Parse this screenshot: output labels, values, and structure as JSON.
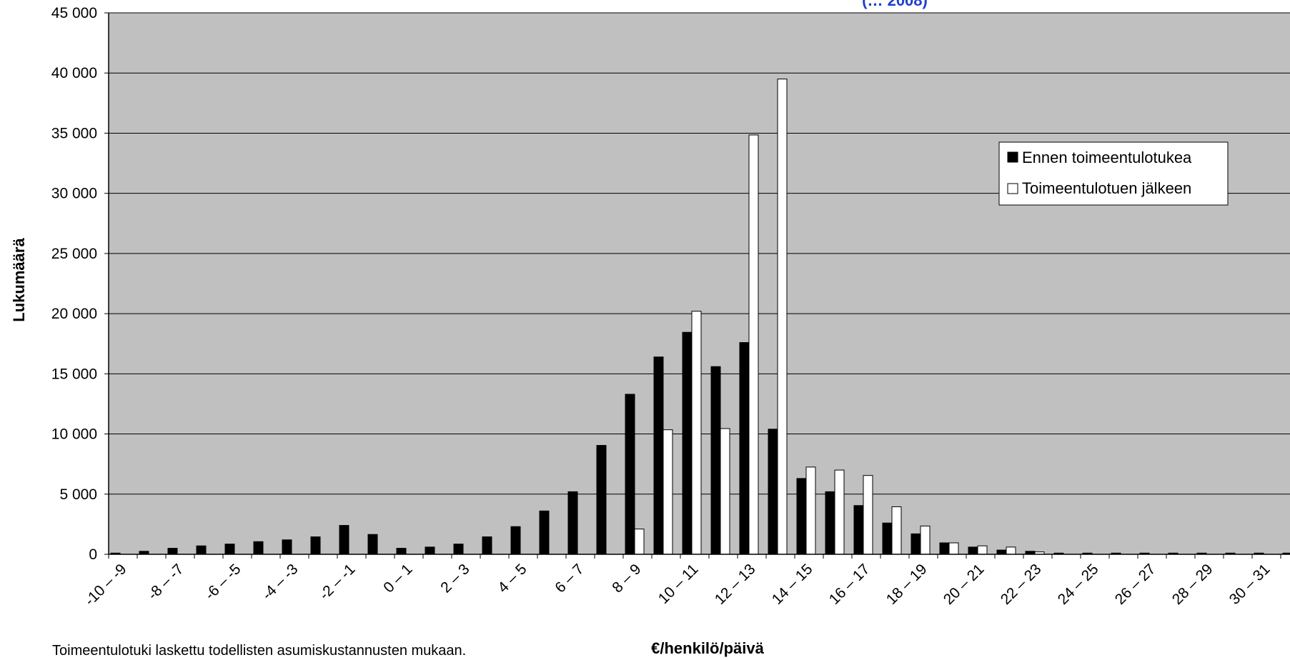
{
  "chart_data": {
    "type": "bar",
    "title": "",
    "title_fragment": "(… 2008)",
    "xlabel": "€/henkilö/päivä",
    "ylabel": "Lukumäärä",
    "ylim": [
      0,
      45000
    ],
    "yticks": [
      0,
      5000,
      10000,
      15000,
      20000,
      25000,
      30000,
      35000,
      40000,
      45000
    ],
    "ytick_labels": [
      "0",
      "5 000",
      "10 000",
      "15 000",
      "20 000",
      "25 000",
      "30 000",
      "35 000",
      "40 000",
      "45 000"
    ],
    "grid": true,
    "legend_position": "top-right",
    "categories": [
      "-10 – -9",
      "-9 – -8",
      "-8 – -7",
      "-7 – -6",
      "-6 – -5",
      "-5 – -4",
      "-4 – -3",
      "-3 – -2",
      "-2 – -1",
      "-1 – 0",
      "0 – 1",
      "1 – 2",
      "2 – 3",
      "3 – 4",
      "4 – 5",
      "5 – 6",
      "6 – 7",
      "7 – 8",
      "8 – 9",
      "9 – 10",
      "10 – 11",
      "11 – 12",
      "12 – 13",
      "13 – 14",
      "14 – 15",
      "15 – 16",
      "16 – 17",
      "17 – 18",
      "18 – 19",
      "19 – 20",
      "20 – 21",
      "21 – 22",
      "22 – 23",
      "23 – 24",
      "24 – 25",
      "25 – 26",
      "26 – 27",
      "27 – 28",
      "28 – 29",
      "29 – 30",
      "30 – 31",
      "31 – 32"
    ],
    "tick_labels_shown": [
      "-10 – -9",
      "-8 – -7",
      "-6 – -5",
      "-4 – -3",
      "-2 – -1",
      "0 – 1",
      "2 – 3",
      "4 – 5",
      "6 – 7",
      "8 – 9",
      "10 – 11",
      "12 – 13",
      "14 – 15",
      "16 – 17",
      "18 – 19",
      "20 – 21",
      "22 – 23",
      "24 – 25",
      "26 – 27",
      "28 – 29",
      "30 – 31"
    ],
    "series": [
      {
        "name": "Ennen toimeentulotukea",
        "color": "#000000",
        "values": [
          100,
          250,
          500,
          700,
          850,
          1050,
          1200,
          1450,
          2400,
          1650,
          500,
          600,
          850,
          1450,
          2300,
          3600,
          5200,
          9050,
          13300,
          16400,
          18450,
          15600,
          17600,
          10400,
          6300,
          5200,
          4050,
          2600,
          1700,
          950,
          600,
          350,
          250,
          100,
          100,
          100,
          100,
          100,
          100,
          100,
          100,
          100
        ]
      },
      {
        "name": "Toimeentulotuen jälkeen",
        "color": "#ffffff",
        "values": [
          0,
          0,
          0,
          0,
          0,
          0,
          0,
          0,
          0,
          0,
          0,
          0,
          0,
          0,
          0,
          0,
          0,
          0,
          2100,
          10350,
          20200,
          10450,
          34850,
          39500,
          7250,
          7000,
          6550,
          3950,
          2350,
          950,
          700,
          600,
          200,
          0,
          0,
          0,
          0,
          0,
          0,
          0,
          0,
          0
        ]
      }
    ],
    "plot_background": "#c0c0c0"
  },
  "footnote": "Toimeentulotuki laskettu todellisten asumiskustannusten mukaan."
}
